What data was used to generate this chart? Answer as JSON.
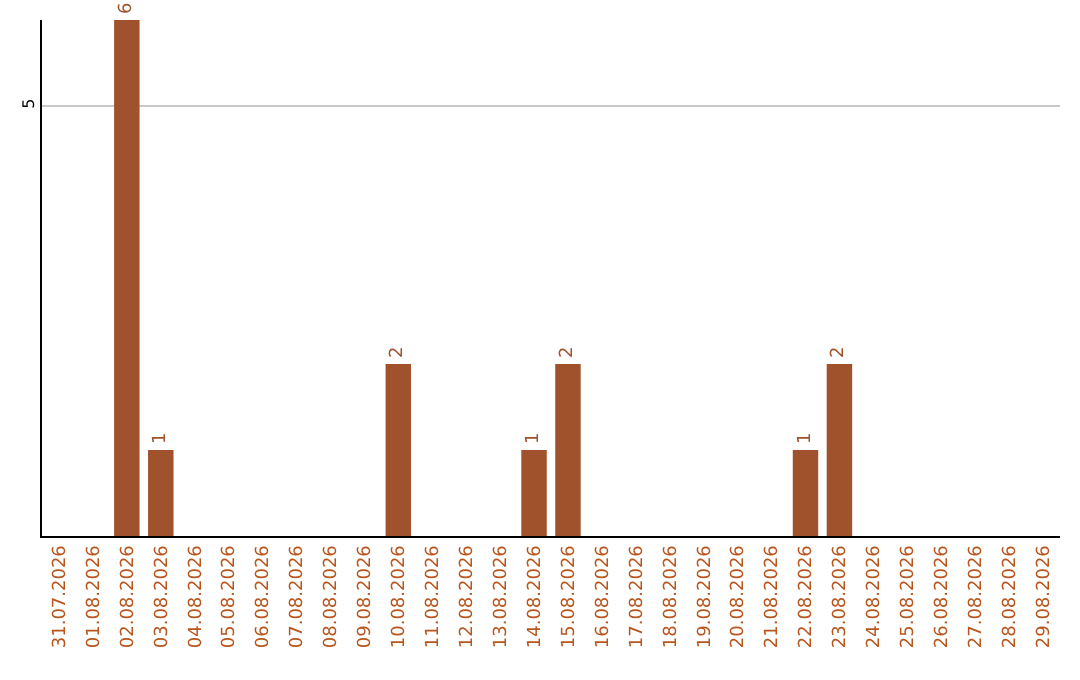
{
  "chart_data": {
    "type": "bar",
    "categories": [
      "31.07.2026",
      "01.08.2026",
      "02.08.2026",
      "03.08.2026",
      "04.08.2026",
      "05.08.2026",
      "06.08.2026",
      "07.08.2026",
      "08.08.2026",
      "09.08.2026",
      "10.08.2026",
      "11.08.2026",
      "12.08.2026",
      "13.08.2026",
      "14.08.2026",
      "15.08.2026",
      "16.08.2026",
      "17.08.2026",
      "18.08.2026",
      "19.08.2026",
      "20.08.2026",
      "21.08.2026",
      "22.08.2026",
      "23.08.2026",
      "24.08.2026",
      "25.08.2026",
      "26.08.2026",
      "27.08.2026",
      "28.08.2026",
      "29.08.2026"
    ],
    "values": [
      0,
      0,
      6,
      1,
      0,
      0,
      0,
      0,
      0,
      0,
      2,
      0,
      0,
      0,
      1,
      2,
      0,
      0,
      0,
      0,
      0,
      0,
      1,
      2,
      0,
      0,
      0,
      0,
      0,
      0
    ],
    "value_labels": [
      null,
      null,
      "6",
      "1",
      null,
      null,
      null,
      null,
      null,
      null,
      "2",
      null,
      null,
      null,
      "1",
      "2",
      null,
      null,
      null,
      null,
      null,
      null,
      "1",
      "2",
      null,
      null,
      null,
      null,
      null,
      null
    ],
    "color": "#a0522d",
    "ylim": [
      0,
      6
    ],
    "yticks": [
      5
    ],
    "grid": "y",
    "legend": false
  }
}
